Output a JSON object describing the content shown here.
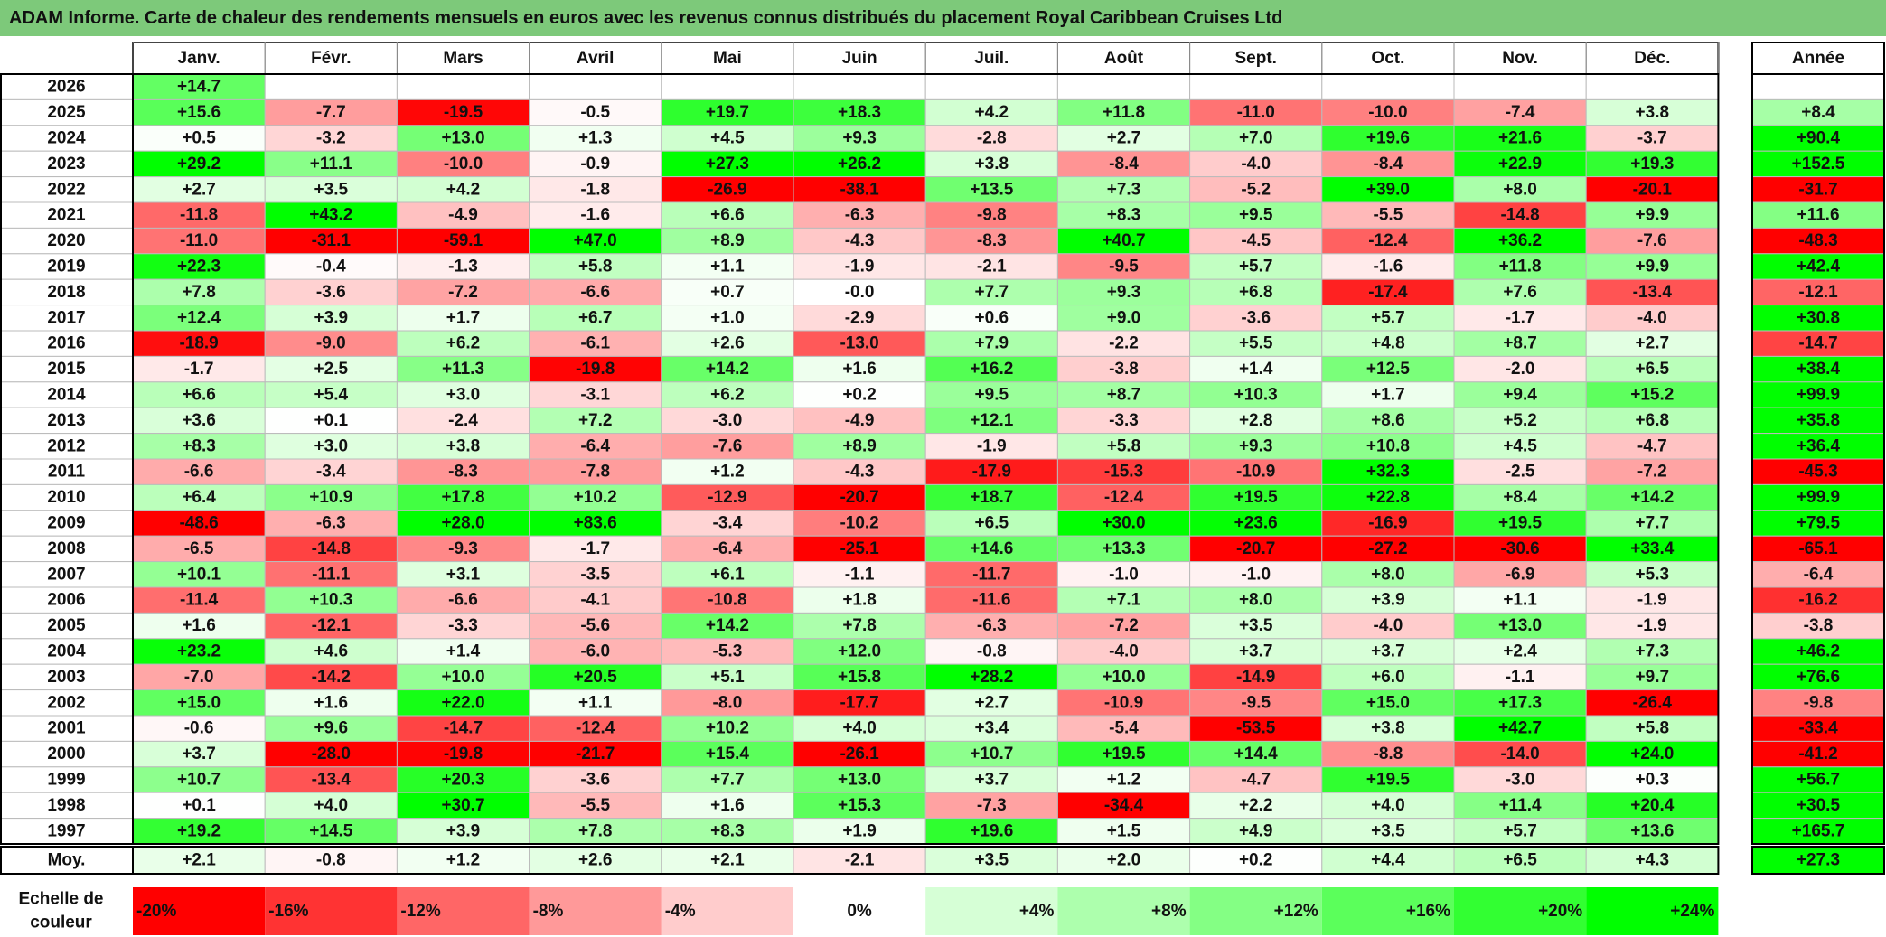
{
  "title": "ADAM Informe. Carte de chaleur des rendements mensuels en euros avec les revenus connus distribués du placement Royal Caribbean Cruises Ltd",
  "chart_data": {
    "type": "heatmap",
    "title": "ADAM Informe. Carte de chaleur des rendements mensuels en euros avec les revenus connus distribués du placement Royal Caribbean Cruises Ltd",
    "months": [
      "Janv.",
      "Févr.",
      "Mars",
      "Avril",
      "Mai",
      "Juin",
      "Juil.",
      "Août",
      "Sept.",
      "Oct.",
      "Nov.",
      "Déc."
    ],
    "year_header": "Année",
    "rows": [
      {
        "year": "2026",
        "values": [
          14.7,
          null,
          null,
          null,
          null,
          null,
          null,
          null,
          null,
          null,
          null,
          null
        ],
        "annual": null
      },
      {
        "year": "2025",
        "values": [
          15.6,
          -7.7,
          -19.5,
          -0.5,
          19.7,
          18.3,
          4.2,
          11.8,
          -11.0,
          -10.0,
          -7.4,
          3.8
        ],
        "annual": 8.4
      },
      {
        "year": "2024",
        "values": [
          0.5,
          -3.2,
          13.0,
          1.3,
          4.5,
          9.3,
          -2.8,
          2.7,
          7.0,
          19.6,
          21.6,
          -3.7
        ],
        "annual": 90.4
      },
      {
        "year": "2023",
        "values": [
          29.2,
          11.1,
          -10.0,
          -0.9,
          27.3,
          26.2,
          3.8,
          -8.4,
          -4.0,
          -8.4,
          22.9,
          19.3
        ],
        "annual": 152.5
      },
      {
        "year": "2022",
        "values": [
          2.7,
          3.5,
          4.2,
          -1.8,
          -26.9,
          -38.1,
          13.5,
          7.3,
          -5.2,
          39.0,
          8.0,
          -20.1
        ],
        "annual": -31.7
      },
      {
        "year": "2021",
        "values": [
          -11.8,
          43.2,
          -4.9,
          -1.6,
          6.6,
          -6.3,
          -9.8,
          8.3,
          9.5,
          -5.5,
          -14.8,
          9.9
        ],
        "annual": 11.6
      },
      {
        "year": "2020",
        "values": [
          -11.0,
          -31.1,
          -59.1,
          47.0,
          8.9,
          -4.3,
          -8.3,
          40.7,
          -4.5,
          -12.4,
          36.2,
          -7.6
        ],
        "annual": -48.3
      },
      {
        "year": "2019",
        "values": [
          22.3,
          -0.4,
          -1.3,
          5.8,
          1.1,
          -1.9,
          -2.1,
          -9.5,
          5.7,
          -1.6,
          11.8,
          9.9
        ],
        "annual": 42.4
      },
      {
        "year": "2018",
        "values": [
          7.8,
          -3.6,
          -7.2,
          -6.6,
          0.7,
          -0.0,
          7.7,
          9.3,
          6.8,
          -17.4,
          7.6,
          -13.4
        ],
        "annual": -12.1
      },
      {
        "year": "2017",
        "values": [
          12.4,
          3.9,
          1.7,
          6.7,
          1.0,
          -2.9,
          0.6,
          9.0,
          -3.6,
          5.7,
          -1.7,
          -4.0
        ],
        "annual": 30.8
      },
      {
        "year": "2016",
        "values": [
          -18.9,
          -9.0,
          6.2,
          -6.1,
          2.6,
          -13.0,
          7.9,
          -2.2,
          5.5,
          4.8,
          8.7,
          2.7
        ],
        "annual": -14.7
      },
      {
        "year": "2015",
        "values": [
          -1.7,
          2.5,
          11.3,
          -19.8,
          14.2,
          1.6,
          16.2,
          -3.8,
          1.4,
          12.5,
          -2.0,
          6.5
        ],
        "annual": 38.4
      },
      {
        "year": "2014",
        "values": [
          6.6,
          5.4,
          3.0,
          -3.1,
          6.2,
          0.2,
          9.5,
          8.7,
          10.3,
          1.7,
          9.4,
          15.2
        ],
        "annual": 99.9
      },
      {
        "year": "2013",
        "values": [
          3.6,
          0.1,
          -2.4,
          7.2,
          -3.0,
          -4.9,
          12.1,
          -3.3,
          2.8,
          8.6,
          5.2,
          6.8
        ],
        "annual": 35.8
      },
      {
        "year": "2012",
        "values": [
          8.3,
          3.0,
          3.8,
          -6.4,
          -7.6,
          8.9,
          -1.9,
          5.8,
          9.3,
          10.8,
          4.5,
          -4.7
        ],
        "annual": 36.4
      },
      {
        "year": "2011",
        "values": [
          -6.6,
          -3.4,
          -8.3,
          -7.8,
          1.2,
          -4.3,
          -17.9,
          -15.3,
          -10.9,
          32.3,
          -2.5,
          -7.2
        ],
        "annual": -45.3
      },
      {
        "year": "2010",
        "values": [
          6.4,
          10.9,
          17.8,
          10.2,
          -12.9,
          -20.7,
          18.7,
          -12.4,
          19.5,
          22.8,
          8.4,
          14.2
        ],
        "annual": 99.9
      },
      {
        "year": "2009",
        "values": [
          -48.6,
          -6.3,
          28.0,
          83.6,
          -3.4,
          -10.2,
          6.5,
          30.0,
          23.6,
          -16.9,
          19.5,
          7.7
        ],
        "annual": 79.5
      },
      {
        "year": "2008",
        "values": [
          -6.5,
          -14.8,
          -9.3,
          -1.7,
          -6.4,
          -25.1,
          14.6,
          13.3,
          -20.7,
          -27.2,
          -30.6,
          33.4
        ],
        "annual": -65.1
      },
      {
        "year": "2007",
        "values": [
          10.1,
          -11.1,
          3.1,
          -3.5,
          6.1,
          -1.1,
          -11.7,
          -1.0,
          -1.0,
          8.0,
          -6.9,
          5.3
        ],
        "annual": -6.4
      },
      {
        "year": "2006",
        "values": [
          -11.4,
          10.3,
          -6.6,
          -4.1,
          -10.8,
          1.8,
          -11.6,
          7.1,
          8.0,
          3.9,
          1.1,
          -1.9
        ],
        "annual": -16.2
      },
      {
        "year": "2005",
        "values": [
          1.6,
          -12.1,
          -3.3,
          -5.6,
          14.2,
          7.8,
          -6.3,
          -7.2,
          3.5,
          -4.0,
          13.0,
          -1.9
        ],
        "annual": -3.8
      },
      {
        "year": "2004",
        "values": [
          23.2,
          4.6,
          1.4,
          -6.0,
          -5.3,
          12.0,
          -0.8,
          -4.0,
          3.7,
          3.7,
          2.4,
          7.3
        ],
        "annual": 46.2
      },
      {
        "year": "2003",
        "values": [
          -7.0,
          -14.2,
          10.0,
          20.5,
          5.1,
          15.8,
          28.2,
          10.0,
          -14.9,
          6.0,
          -1.1,
          9.7
        ],
        "annual": 76.6
      },
      {
        "year": "2002",
        "values": [
          15.0,
          1.6,
          22.0,
          1.1,
          -8.0,
          -17.7,
          2.7,
          -10.9,
          -9.5,
          15.0,
          17.3,
          -26.4
        ],
        "annual": -9.8
      },
      {
        "year": "2001",
        "values": [
          -0.6,
          9.6,
          -14.7,
          -12.4,
          10.2,
          4.0,
          3.4,
          -5.4,
          -53.5,
          3.8,
          42.7,
          5.8
        ],
        "annual": -33.4
      },
      {
        "year": "2000",
        "values": [
          3.7,
          -28.0,
          -19.8,
          -21.7,
          15.4,
          -26.1,
          10.7,
          19.5,
          14.4,
          -8.8,
          -14.0,
          24.0
        ],
        "annual": -41.2
      },
      {
        "year": "1999",
        "values": [
          10.7,
          -13.4,
          20.3,
          -3.6,
          7.7,
          13.0,
          3.7,
          1.2,
          -4.7,
          19.5,
          -3.0,
          0.3
        ],
        "annual": 56.7
      },
      {
        "year": "1998",
        "values": [
          0.1,
          4.0,
          30.7,
          -5.5,
          1.6,
          15.3,
          -7.3,
          -34.4,
          2.2,
          4.0,
          11.4,
          20.4
        ],
        "annual": 30.5
      },
      {
        "year": "1997",
        "values": [
          19.2,
          14.5,
          3.9,
          7.8,
          8.3,
          1.9,
          19.6,
          1.5,
          4.9,
          3.5,
          5.7,
          13.6
        ],
        "annual": 165.7
      }
    ],
    "average": {
      "label": "Moy.",
      "values": [
        2.1,
        -0.8,
        1.2,
        2.6,
        2.1,
        -2.1,
        3.5,
        2.0,
        0.2,
        4.4,
        6.5,
        4.3
      ],
      "annual": 27.3
    },
    "scale": {
      "label_line1": "Echelle de",
      "label_line2": "couleur",
      "items": [
        {
          "label": "-20%",
          "value": -20,
          "color": "#ff0000"
        },
        {
          "label": "-16%",
          "value": -16,
          "color": "#ff3333"
        },
        {
          "label": "-12%",
          "value": -12,
          "color": "#ff6666"
        },
        {
          "label": "-8%",
          "value": -8,
          "color": "#ff9999"
        },
        {
          "label": "-4%",
          "value": -4,
          "color": "#ffcccc"
        },
        {
          "label": "0%",
          "value": 0,
          "color": "#ffffff"
        },
        {
          "label": "+4%",
          "value": 4,
          "color": "#d6ffd6"
        },
        {
          "label": "+8%",
          "value": 8,
          "color": "#adffad"
        },
        {
          "label": "+12%",
          "value": 12,
          "color": "#84ff84"
        },
        {
          "label": "+16%",
          "value": 16,
          "color": "#5bff5b"
        },
        {
          "label": "+20%",
          "value": 20,
          "color": "#32ff32"
        },
        {
          "label": "+24%",
          "value": 24,
          "color": "#00ff00"
        }
      ]
    }
  }
}
